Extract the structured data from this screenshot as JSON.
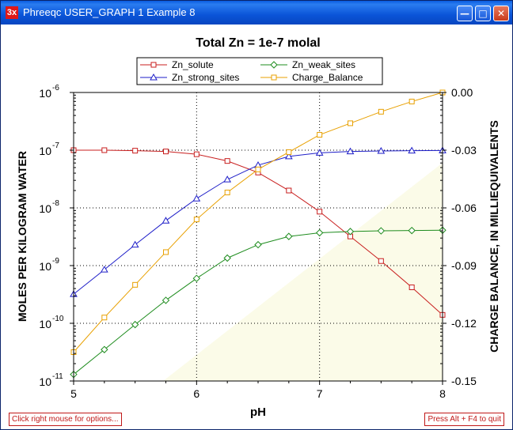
{
  "window": {
    "title": "Phreeqc USER_GRAPH 1 Example 8",
    "icon_label": "3x",
    "controls": [
      "minimize-icon",
      "maximize-icon",
      "close-icon"
    ]
  },
  "status": {
    "left_hint": "Click right mouse for options...",
    "right_hint": "Press Alt + F4 to quit"
  },
  "chart_data": {
    "type": "line",
    "title": "Total Zn = 1e-7 molal",
    "xlabel": "pH",
    "ylabel": "MOLES PER KILOGRAM WATER",
    "y2label": "CHARGE BALANCE, IN MILLIEQUIVALENTS",
    "xlim": [
      5,
      8
    ],
    "ylim": [
      1e-11,
      1e-06
    ],
    "yscale": "log",
    "y2lim": [
      -0.15,
      0.0
    ],
    "grid": true,
    "legend_position": "top",
    "x_ticks": [
      "5",
      "6",
      "7",
      "8"
    ],
    "y_ticks": [
      {
        "base": "10",
        "exp": "-11"
      },
      {
        "base": "10",
        "exp": "-10"
      },
      {
        "base": "10",
        "exp": "-9"
      },
      {
        "base": "10",
        "exp": "-8"
      },
      {
        "base": "10",
        "exp": "-7"
      },
      {
        "base": "10",
        "exp": "-6"
      }
    ],
    "y2_ticks": [
      "-0.15",
      "-0.12",
      "-0.09",
      "-0.06",
      "-0.03",
      "0.00"
    ],
    "x": [
      5.0,
      5.25,
      5.5,
      5.75,
      6.0,
      6.25,
      6.5,
      6.75,
      7.0,
      7.25,
      7.5,
      7.75,
      8.0
    ],
    "series": [
      {
        "name": "Zn_solute",
        "axis": "left",
        "color": "#c81e1e",
        "marker": "square",
        "values": [
          1e-07,
          1e-07,
          9.8e-08,
          9.5e-08,
          8.5e-08,
          6.5e-08,
          4.1e-08,
          2e-08,
          8.6e-09,
          3.2e-09,
          1.2e-09,
          4.2e-10,
          1.4e-10
        ]
      },
      {
        "name": "Zn_weak_sites",
        "axis": "left",
        "color": "#1e8c1e",
        "marker": "diamond",
        "values": [
          1.3e-11,
          3.5e-11,
          9.5e-11,
          2.5e-10,
          6e-10,
          1.35e-09,
          2.3e-09,
          3.2e-09,
          3.7e-09,
          3.9e-09,
          4e-09,
          4.05e-09,
          4.1e-09
        ]
      },
      {
        "name": "Zn_strong_sites",
        "axis": "left",
        "color": "#1e1ec8",
        "marker": "triangle",
        "values": [
          3.2e-10,
          8.5e-10,
          2.3e-09,
          6e-09,
          1.45e-08,
          3.1e-08,
          5.5e-08,
          7.8e-08,
          9e-08,
          9.5e-08,
          9.7e-08,
          9.8e-08,
          9.9e-08
        ]
      },
      {
        "name": "Charge_Balance",
        "axis": "right",
        "color": "#e8a000",
        "marker": "square",
        "values": [
          -0.135,
          -0.117,
          -0.1,
          -0.083,
          -0.066,
          -0.052,
          -0.04,
          -0.031,
          -0.022,
          -0.016,
          -0.01,
          -0.0047,
          0.0
        ]
      }
    ]
  }
}
